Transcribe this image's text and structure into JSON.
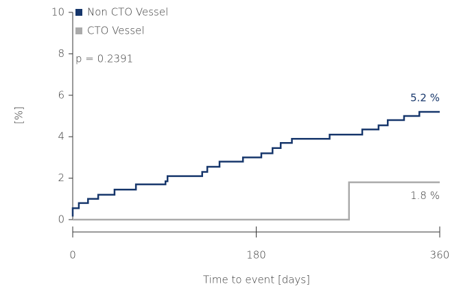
{
  "chart_data": {
    "type": "step",
    "series": [
      {
        "name": "Non CTO Vessel",
        "color": "#16366b",
        "x": [
          0,
          0,
          6,
          15,
          25,
          41,
          62,
          91,
          93,
          127,
          132,
          144,
          167,
          185,
          196,
          204,
          215,
          252,
          284,
          300,
          309,
          325,
          340,
          360
        ],
        "values": [
          0.15,
          0.55,
          0.8,
          1.0,
          1.2,
          1.45,
          1.7,
          1.85,
          2.1,
          2.3,
          2.55,
          2.8,
          3.0,
          3.2,
          3.45,
          3.7,
          3.9,
          4.1,
          4.35,
          4.55,
          4.8,
          5.0,
          5.2,
          5.2
        ],
        "value_labels": [
          null,
          null,
          null,
          null,
          null,
          null,
          null,
          null,
          null,
          null,
          null,
          null,
          null,
          null,
          null,
          null,
          null,
          null,
          null,
          null,
          null,
          null,
          null,
          "5.2 %"
        ]
      },
      {
        "name": "CTO Vessel",
        "color": "#aaaaaa",
        "x": [
          0,
          271,
          360
        ],
        "values": [
          0,
          1.8,
          1.8
        ],
        "value_labels": [
          null,
          null,
          "1.8 %"
        ]
      }
    ],
    "annotations": [
      "p = 0.2391"
    ],
    "xlabel": "Time to event [days]",
    "ylabel": "[%]",
    "xlim": [
      0,
      360
    ],
    "xticks": [
      0,
      180,
      360
    ],
    "ylim": [
      0,
      10
    ],
    "yticks": [
      0,
      2,
      4,
      6,
      8,
      10
    ],
    "legend": "upper left"
  }
}
